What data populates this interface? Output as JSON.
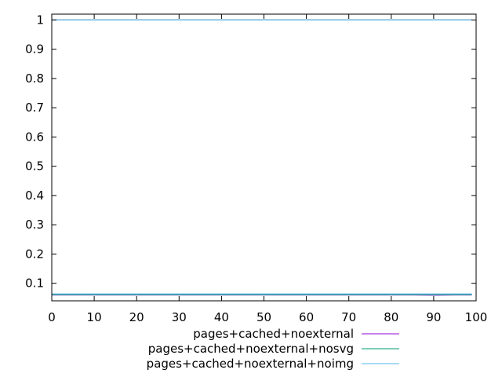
{
  "chart_data": {
    "type": "line",
    "title": "",
    "xlabel": "",
    "ylabel": "",
    "xlim": [
      0,
      100
    ],
    "ylim": [
      0.04,
      1.02
    ],
    "xticks": [
      0,
      10,
      20,
      30,
      40,
      50,
      60,
      70,
      80,
      90,
      100
    ],
    "yticks": [
      0.1,
      0.2,
      0.3,
      0.4,
      0.5,
      0.6,
      0.7,
      0.8,
      0.9,
      1
    ],
    "grid": false,
    "legend_position": "bottom-center",
    "series": [
      {
        "name": "pages+cached+noexternal",
        "color": "#9400d3",
        "points": [
          [
            0,
            0.06
          ],
          [
            85,
            0.06
          ],
          [
            90,
            0.059
          ],
          [
            95,
            0.06
          ],
          [
            99,
            0.06
          ]
        ],
        "upper": [
          [
            0,
            1.0
          ],
          [
            99,
            1.0
          ]
        ]
      },
      {
        "name": "pages+cached+noexternal+nosvg",
        "color": "#009e73",
        "points": [
          [
            0,
            0.061
          ],
          [
            85,
            0.061
          ],
          [
            99,
            0.061
          ]
        ],
        "upper": [
          [
            0,
            1.0
          ],
          [
            99,
            1.0
          ]
        ]
      },
      {
        "name": "pages+cached+noexternal+noimg",
        "color": "#56b4e9",
        "points": [
          [
            0,
            0.064
          ],
          [
            85,
            0.064
          ],
          [
            99,
            0.064
          ]
        ],
        "upper": [
          [
            0,
            1.0
          ],
          [
            99,
            1.0
          ]
        ]
      }
    ]
  }
}
